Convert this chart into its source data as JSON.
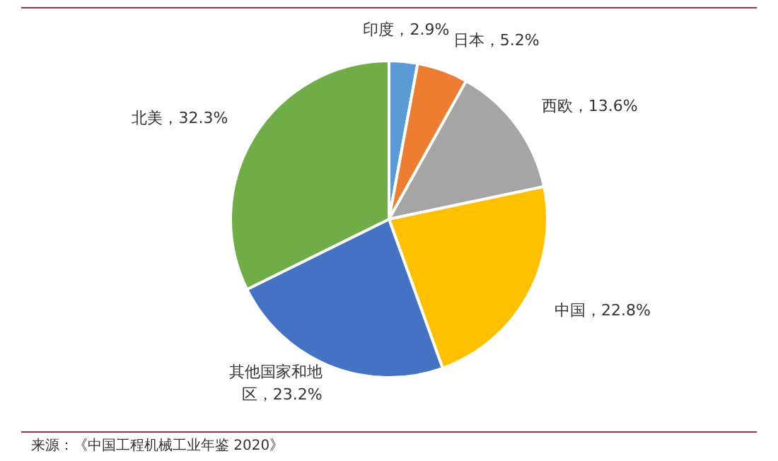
{
  "chart_data": {
    "type": "pie",
    "categories": [
      "印度",
      "日本",
      "西欧",
      "中国",
      "其他国家和地区",
      "北美"
    ],
    "values": [
      2.9,
      5.2,
      13.6,
      22.8,
      23.2,
      32.3
    ],
    "colors": [
      "#5b9bd5",
      "#ed7d31",
      "#a5a5a5",
      "#ffc000",
      "#4472c4",
      "#70ad47"
    ],
    "value_labels": [
      "，2.9%",
      "，5.2%",
      "，13.6%",
      "，22.8%",
      "，23.2%",
      "，32.3%"
    ],
    "legend": false,
    "annotations": [
      "来源：《中国工程机械工业年鉴 2020》"
    ]
  }
}
